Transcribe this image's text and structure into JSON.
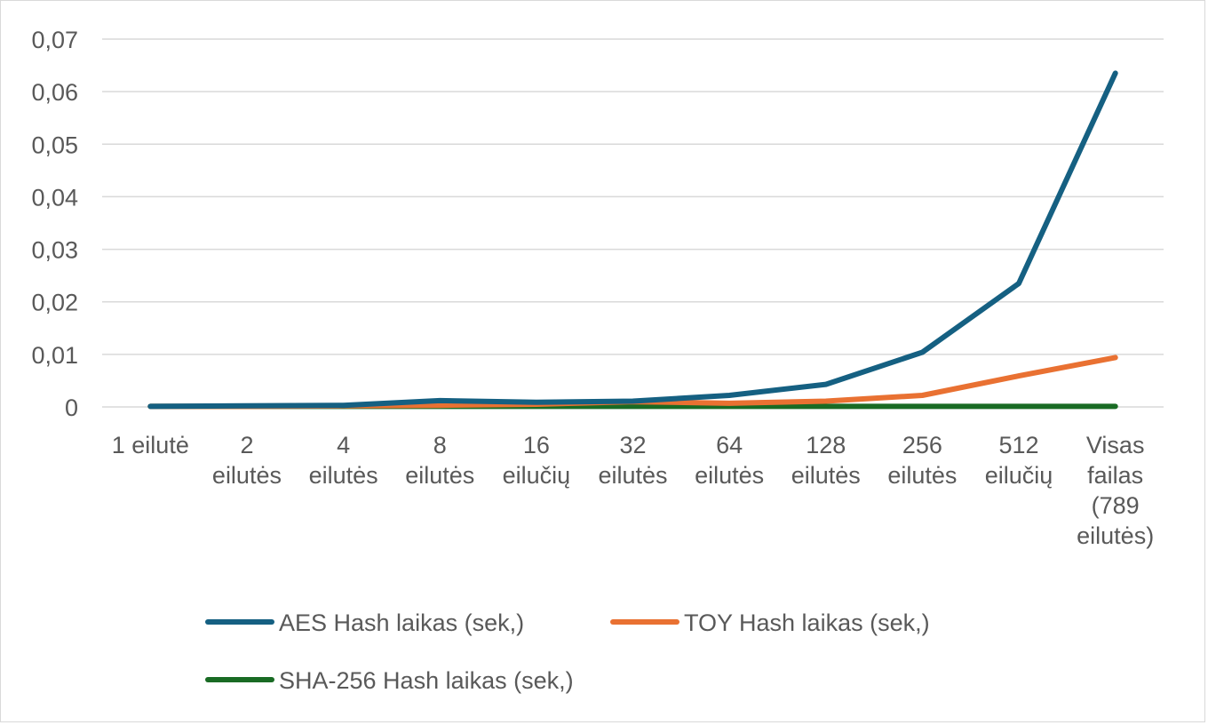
{
  "chart_data": {
    "type": "line",
    "title": "",
    "xlabel": "",
    "ylabel": "",
    "ylim": [
      0,
      0.07
    ],
    "yticks": [
      0,
      0.01,
      0.02,
      0.03,
      0.04,
      0.05,
      0.06,
      0.07
    ],
    "ytick_labels": [
      "0",
      "0,01",
      "0,02",
      "0,03",
      "0,04",
      "0,05",
      "0,06",
      "0,07"
    ],
    "grid": "horizontal",
    "legend_position": "bottom",
    "categories": [
      [
        "1 eilutė"
      ],
      [
        "2",
        "eilutės"
      ],
      [
        "4",
        "eilutės"
      ],
      [
        "8",
        "eilutės"
      ],
      [
        "16",
        "eilučių"
      ],
      [
        "32",
        "eilutės"
      ],
      [
        "64",
        "eilutės"
      ],
      [
        "128",
        "eilutės"
      ],
      [
        "256",
        "eilutės"
      ],
      [
        "512",
        "eilučių"
      ],
      [
        "Visas",
        "failas",
        "(789",
        "eilutės)"
      ]
    ],
    "series": [
      {
        "name": "AES Hash laikas (sek,)",
        "color": "#156082",
        "values": [
          0.0001,
          0.0002,
          0.0003,
          0.0012,
          0.0009,
          0.0011,
          0.0022,
          0.0043,
          0.0104,
          0.0235,
          0.0635
        ]
      },
      {
        "name": "TOY Hash laikas (sek,)",
        "color": "#E97132",
        "values": [
          0.0001,
          0.0001,
          0.0002,
          0.0003,
          0.0005,
          0.001,
          0.0007,
          0.0011,
          0.0022,
          0.0059,
          0.0094
        ]
      },
      {
        "name": "SHA-256 Hash laikas (sek,)",
        "color": "#196B24",
        "values": [
          0.0001,
          0.0001,
          0.0001,
          0.0001,
          0.0001,
          0.0001,
          0.0001,
          0.0001,
          0.0001,
          0.0001,
          0.0001
        ]
      }
    ]
  }
}
